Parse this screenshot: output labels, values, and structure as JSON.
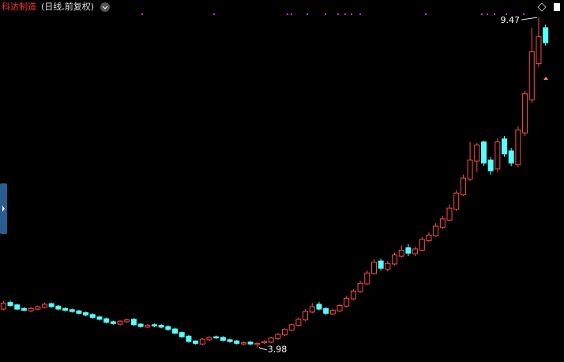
{
  "chart_data": {
    "type": "candlestick",
    "title": "科达制造",
    "subtitle": "(日线,前复权)",
    "up_color": "#ff4b4b",
    "down_color": "#54ffff",
    "ylim": [
      3.74,
      9.76
    ],
    "open": [
      4.62,
      4.73,
      4.69,
      4.63,
      4.59,
      4.62,
      4.65,
      4.71,
      4.67,
      4.63,
      4.61,
      4.59,
      4.56,
      4.53,
      4.49,
      4.46,
      4.41,
      4.37,
      4.41,
      4.45,
      4.37,
      4.32,
      4.36,
      4.35,
      4.33,
      4.29,
      4.23,
      4.17,
      4.09,
      4.04,
      4.11,
      4.16,
      4.15,
      4.11,
      4.09,
      4.04,
      4.07,
      4.03,
      4.06,
      4.07,
      4.13,
      4.19,
      4.27,
      4.35,
      4.44,
      4.57,
      4.7,
      4.63,
      4.54,
      4.59,
      4.67,
      4.79,
      4.91,
      5.04,
      5.21,
      5.42,
      5.28,
      5.37,
      5.5,
      5.64,
      5.54,
      5.6,
      5.76,
      5.84,
      5.98,
      6.1,
      6.28,
      6.52,
      6.78,
      7.08,
      7.4,
      7.1,
      6.95,
      7.45,
      7.25,
      7.02,
      7.55,
      8.1,
      8.7,
      9.3
    ],
    "high": [
      4.76,
      4.76,
      4.71,
      4.65,
      4.66,
      4.68,
      4.73,
      4.73,
      4.69,
      4.65,
      4.63,
      4.61,
      4.58,
      4.55,
      4.51,
      4.48,
      4.43,
      4.44,
      4.46,
      4.47,
      4.39,
      4.37,
      4.38,
      4.37,
      4.35,
      4.31,
      4.25,
      4.19,
      4.1,
      4.14,
      4.17,
      4.18,
      4.17,
      4.13,
      4.11,
      4.08,
      4.09,
      4.07,
      4.1,
      4.16,
      4.22,
      4.3,
      4.38,
      4.48,
      4.62,
      4.72,
      4.74,
      4.65,
      4.63,
      4.71,
      4.84,
      4.95,
      5.09,
      5.26,
      5.45,
      5.46,
      5.42,
      5.56,
      5.68,
      5.7,
      5.66,
      5.82,
      5.9,
      6.05,
      6.17,
      6.36,
      6.6,
      6.86,
      7.4,
      7.38,
      7.42,
      7.15,
      7.46,
      7.5,
      7.3,
      7.66,
      8.25,
      9.3,
      9.47,
      9.35
    ],
    "low": [
      4.6,
      4.66,
      4.6,
      4.58,
      4.57,
      4.6,
      4.63,
      4.64,
      4.6,
      4.58,
      4.56,
      4.53,
      4.5,
      4.46,
      4.43,
      4.38,
      4.36,
      4.35,
      4.39,
      4.34,
      4.31,
      4.3,
      4.32,
      4.3,
      4.26,
      4.2,
      4.14,
      4.06,
      4.03,
      4.02,
      4.09,
      4.12,
      4.08,
      4.06,
      4.03,
      4.02,
      4.02,
      3.98,
      4.04,
      4.05,
      4.11,
      4.17,
      4.25,
      4.33,
      4.42,
      4.55,
      4.6,
      4.52,
      4.52,
      4.57,
      4.65,
      4.77,
      4.89,
      5.02,
      5.19,
      5.26,
      5.25,
      5.35,
      5.48,
      5.5,
      5.5,
      5.58,
      5.74,
      5.82,
      5.95,
      6.08,
      6.25,
      6.5,
      6.75,
      6.9,
      7.0,
      6.85,
      6.9,
      7.15,
      7.0,
      6.98,
      7.5,
      8.05,
      8.65,
      9.0
    ],
    "close": [
      4.72,
      4.68,
      4.62,
      4.6,
      4.63,
      4.66,
      4.7,
      4.66,
      4.62,
      4.6,
      4.58,
      4.55,
      4.52,
      4.48,
      4.45,
      4.4,
      4.38,
      4.42,
      4.44,
      4.36,
      4.33,
      4.35,
      4.34,
      4.32,
      4.28,
      4.22,
      4.16,
      4.08,
      4.05,
      4.12,
      4.15,
      4.14,
      4.1,
      4.08,
      4.05,
      4.06,
      4.04,
      4.05,
      4.08,
      4.14,
      4.2,
      4.28,
      4.36,
      4.45,
      4.58,
      4.66,
      4.62,
      4.55,
      4.6,
      4.68,
      4.8,
      4.92,
      5.05,
      5.22,
      5.4,
      5.3,
      5.38,
      5.52,
      5.6,
      5.55,
      5.62,
      5.78,
      5.85,
      6.0,
      6.12,
      6.3,
      6.55,
      6.8,
      7.1,
      7.35,
      7.05,
      6.92,
      7.4,
      7.2,
      7.05,
      7.6,
      8.2,
      8.9,
      9.15,
      9.05
    ],
    "max_label": "9.47",
    "min_label": "3.98"
  }
}
